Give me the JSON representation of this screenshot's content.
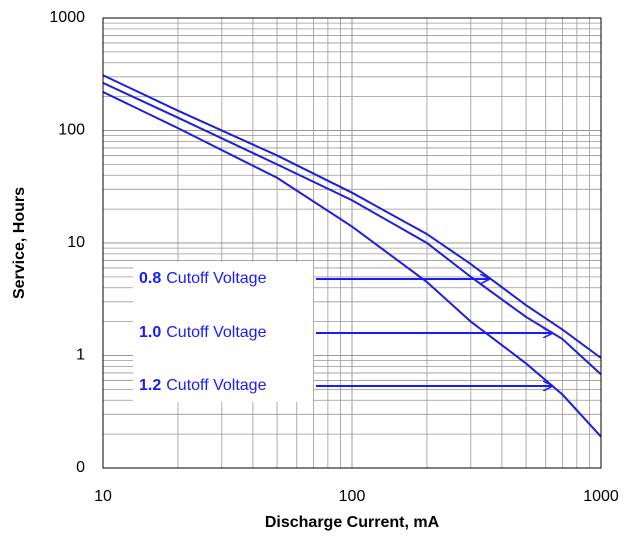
{
  "chart_data": {
    "type": "line",
    "xlabel": "Discharge Current, mA",
    "ylabel": "Service, Hours",
    "x": [
      10,
      20,
      50,
      100,
      200,
      300,
      500,
      700,
      1000
    ],
    "series": [
      {
        "name": "0.8",
        "note": "Cutoff Voltage",
        "color": "#1f1fd6",
        "values": [
          310,
          150,
          60,
          28,
          12,
          6.5,
          2.8,
          1.7,
          0.95
        ]
      },
      {
        "name": "1.0",
        "note": "Cutoff Voltage",
        "color": "#1f1fd6",
        "values": [
          265,
          130,
          50,
          24,
          10,
          5,
          2.2,
          1.4,
          0.68
        ]
      },
      {
        "name": "1.2",
        "note": "Cutoff Voltage",
        "color": "#1f1fd6",
        "values": [
          220,
          105,
          38,
          14,
          4.5,
          2,
          0.85,
          0.45,
          0.19
        ]
      }
    ],
    "xlim": [
      10,
      1000
    ],
    "xticks": [
      10,
      100,
      1000
    ],
    "ylim": [
      0.1,
      1000
    ],
    "yticks": [
      {
        "value": 0.1,
        "label": "0"
      },
      1,
      10,
      100,
      1000
    ],
    "xlog": true,
    "ylog": true,
    "grid": true,
    "label_color": "#1a1aff"
  }
}
